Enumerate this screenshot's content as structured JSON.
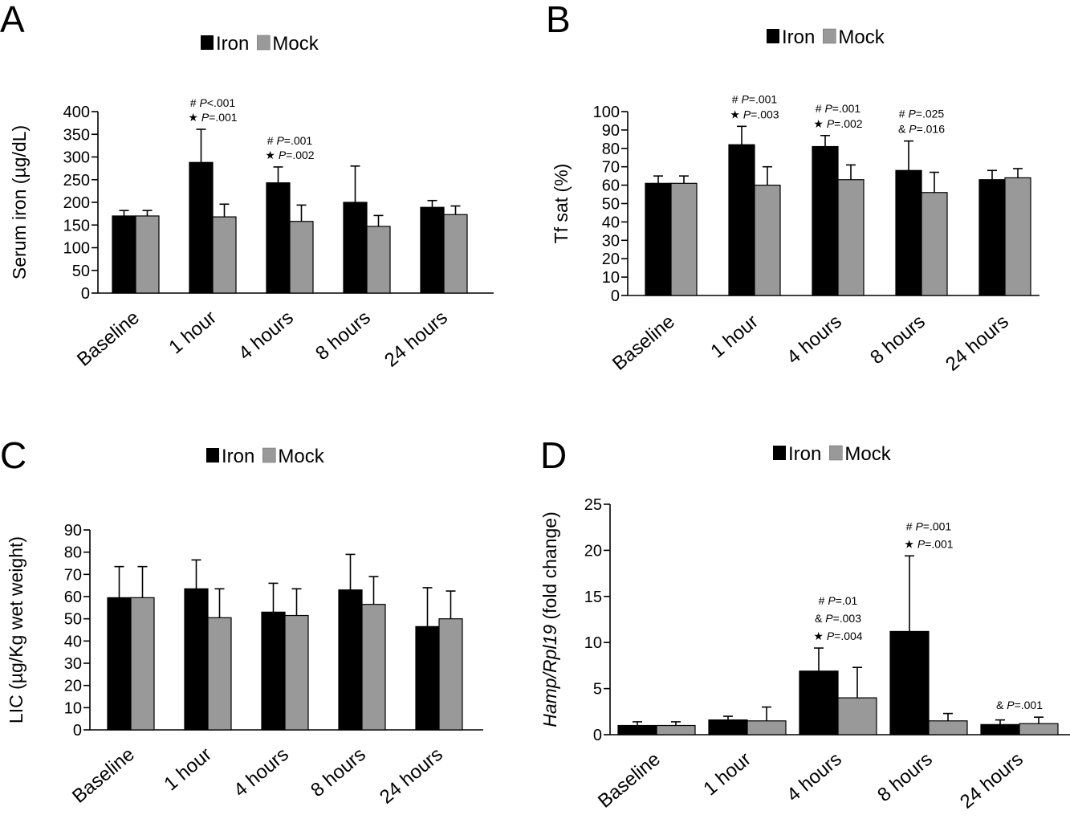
{
  "legend": {
    "iron_label": "Iron",
    "mock_label": "Mock"
  },
  "colors": {
    "iron": "#000000",
    "mock": "#999999"
  },
  "chart_data": [
    {
      "panel": "A",
      "type": "bar",
      "ylabel": "Serum iron (µg/dL)",
      "ylabel_parts": [
        {
          "text": "Serum iron (µg/dL)",
          "italic": false
        }
      ],
      "ylim": [
        0,
        400
      ],
      "yticks": [
        0,
        50,
        100,
        150,
        200,
        250,
        300,
        350,
        400
      ],
      "categories": [
        "Baseline",
        "1 hour",
        "4 hours",
        "8 hours",
        "24 hours"
      ],
      "series": [
        {
          "name": "Iron",
          "values": [
            170,
            288,
            243,
            200,
            189
          ],
          "errors": [
            12,
            73,
            35,
            80,
            15
          ]
        },
        {
          "name": "Mock",
          "values": [
            170,
            168,
            158,
            147,
            173
          ],
          "errors": [
            12,
            28,
            36,
            24,
            19
          ]
        }
      ],
      "annotations": [
        {
          "category": 1,
          "lines": [
            {
              "symbol": "#",
              "p": "P",
              "value": "<.001"
            },
            {
              "symbol": "★",
              "p": "P",
              "value": "=.001"
            }
          ]
        },
        {
          "category": 2,
          "lines": [
            {
              "symbol": "#",
              "p": "P",
              "value": "=.001"
            },
            {
              "symbol": "★",
              "p": "P",
              "value": "=.002"
            }
          ]
        }
      ]
    },
    {
      "panel": "B",
      "type": "bar",
      "ylabel": "Tf sat (%)",
      "ylabel_parts": [
        {
          "text": "Tf sat (%)",
          "italic": false
        }
      ],
      "ylim": [
        0,
        100
      ],
      "yticks": [
        0,
        10,
        20,
        30,
        40,
        50,
        60,
        70,
        80,
        90,
        100
      ],
      "categories": [
        "Baseline",
        "1 hour",
        "4 hours",
        "8 hours",
        "24 hours"
      ],
      "series": [
        {
          "name": "Iron",
          "values": [
            61,
            82,
            81,
            68,
            63
          ],
          "errors": [
            4,
            10,
            6,
            16,
            5
          ]
        },
        {
          "name": "Mock",
          "values": [
            61,
            60,
            63,
            56,
            64
          ],
          "errors": [
            4,
            10,
            8,
            11,
            5
          ]
        }
      ],
      "annotations": [
        {
          "category": 1,
          "lines": [
            {
              "symbol": "#",
              "p": "P",
              "value": "=.001"
            },
            {
              "symbol": "★",
              "p": "P",
              "value": "=.003"
            }
          ]
        },
        {
          "category": 2,
          "lines": [
            {
              "symbol": "#",
              "p": "P",
              "value": "=.001"
            },
            {
              "symbol": "★",
              "p": "P",
              "value": "=.002"
            }
          ]
        },
        {
          "category": 3,
          "lines": [
            {
              "symbol": "#",
              "p": "P",
              "value": "=.025"
            },
            {
              "symbol": "&",
              "p": "P",
              "value": "=.016"
            }
          ]
        }
      ]
    },
    {
      "panel": "C",
      "type": "bar",
      "ylabel": "LIC (µg/Kg wet weight)",
      "ylabel_parts": [
        {
          "text": "LIC (µg/Kg wet weight)",
          "italic": false
        }
      ],
      "ylim": [
        0,
        90
      ],
      "yticks": [
        0,
        10,
        20,
        30,
        40,
        50,
        60,
        70,
        80,
        90
      ],
      "categories": [
        "Baseline",
        "1 hour",
        "4 hours",
        "8 hours",
        "24 hours"
      ],
      "series": [
        {
          "name": "Iron",
          "values": [
            59.5,
            63.5,
            53,
            63,
            46.5
          ],
          "errors": [
            14,
            13,
            13,
            16,
            17.5
          ]
        },
        {
          "name": "Mock",
          "values": [
            59.5,
            50.5,
            51.5,
            56.5,
            50
          ],
          "errors": [
            14,
            13,
            12,
            12.5,
            12.5
          ]
        }
      ],
      "annotations": []
    },
    {
      "panel": "D",
      "type": "bar",
      "ylabel": "Hamp/Rpl19 (fold change)",
      "ylabel_parts": [
        {
          "text": "Hamp/Rpl19",
          "italic": true
        },
        {
          "text": " (fold change)",
          "italic": false
        }
      ],
      "ylim": [
        0,
        25
      ],
      "yticks": [
        0,
        5,
        10,
        15,
        20,
        25
      ],
      "categories": [
        "Baseline",
        "1 hour",
        "4 hours",
        "8 hours",
        "24 hours"
      ],
      "series": [
        {
          "name": "Iron",
          "values": [
            1.0,
            1.6,
            6.9,
            11.2,
            1.1
          ],
          "errors": [
            0.4,
            0.4,
            2.5,
            8.2,
            0.5
          ]
        },
        {
          "name": "Mock",
          "values": [
            1.0,
            1.5,
            4.0,
            1.5,
            1.2
          ],
          "errors": [
            0.4,
            1.5,
            3.3,
            0.8,
            0.7
          ]
        }
      ],
      "annotations": [
        {
          "category": 2,
          "lines": [
            {
              "symbol": "#",
              "p": "P",
              "value": "=.01"
            },
            {
              "symbol": "&",
              "p": "P",
              "value": "=.003"
            },
            {
              "symbol": "★",
              "p": "P",
              "value": "=.004"
            }
          ]
        },
        {
          "category": 3,
          "lines": [
            {
              "symbol": "#",
              "p": "P",
              "value": "=.001"
            },
            {
              "symbol": "★",
              "p": "P",
              "value": "=.001"
            }
          ]
        },
        {
          "category": 4,
          "lines": [
            {
              "symbol": "&",
              "p": "P",
              "value": "=.001"
            }
          ]
        }
      ]
    }
  ]
}
